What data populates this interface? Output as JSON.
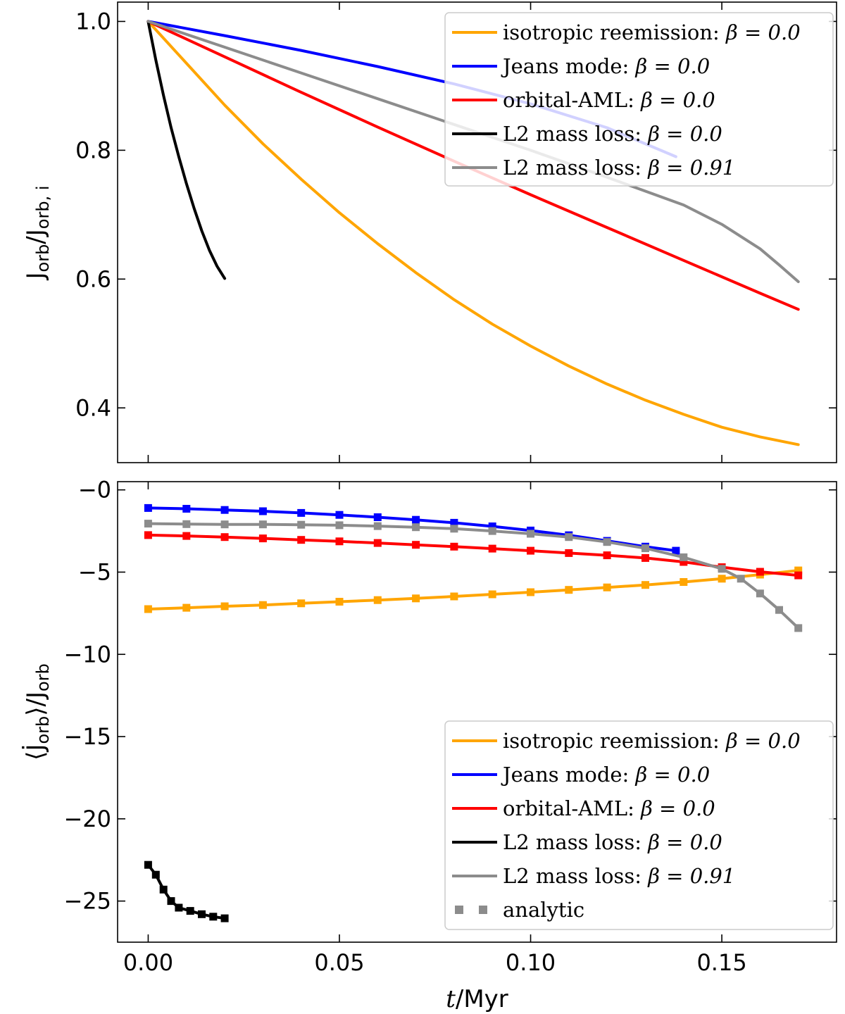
{
  "chart_data": [
    {
      "type": "line",
      "panel": "top",
      "ylabel_main": "J",
      "ylabel_sub": "orb",
      "ylabel_main2": "J",
      "ylabel_sub2": "orb, i",
      "xlim": [
        -0.008,
        0.18
      ],
      "ylim": [
        0.315,
        1.03
      ],
      "yticks": [
        0.4,
        0.6,
        0.8,
        1.0
      ],
      "ytick_labels": [
        "0.4",
        "0.6",
        "0.8",
        "1.0"
      ],
      "xticks": [
        0.0,
        0.05,
        0.1,
        0.15
      ],
      "legend_position": "top-right",
      "series": [
        {
          "name": "isotropic reemission: β = 0.0",
          "color": "#FFA500",
          "x": [
            0,
            0.01,
            0.02,
            0.03,
            0.04,
            0.05,
            0.06,
            0.07,
            0.08,
            0.09,
            0.1,
            0.11,
            0.12,
            0.13,
            0.14,
            0.15,
            0.16,
            0.17
          ],
          "y": [
            1.0,
            0.935,
            0.87,
            0.81,
            0.755,
            0.703,
            0.655,
            0.61,
            0.568,
            0.53,
            0.496,
            0.465,
            0.437,
            0.412,
            0.39,
            0.37,
            0.355,
            0.343
          ]
        },
        {
          "name": "Jeans mode: β = 0.0",
          "color": "#0000FF",
          "x": [
            0,
            0.02,
            0.04,
            0.06,
            0.08,
            0.1,
            0.12,
            0.138
          ],
          "y": [
            1.0,
            0.978,
            0.955,
            0.93,
            0.903,
            0.872,
            0.835,
            0.79
          ]
        },
        {
          "name": "orbital-AML: β = 0.0",
          "color": "#FF0000",
          "x": [
            0,
            0.02,
            0.04,
            0.06,
            0.08,
            0.1,
            0.12,
            0.14,
            0.16,
            0.17
          ],
          "y": [
            1.0,
            0.945,
            0.89,
            0.836,
            0.783,
            0.731,
            0.68,
            0.629,
            0.578,
            0.553
          ]
        },
        {
          "name": "L2 mass loss: β = 0.0",
          "color": "#000000",
          "x": [
            0,
            0.002,
            0.004,
            0.006,
            0.008,
            0.01,
            0.012,
            0.014,
            0.016,
            0.018,
            0.02
          ],
          "y": [
            1.0,
            0.94,
            0.885,
            0.835,
            0.79,
            0.748,
            0.71,
            0.675,
            0.645,
            0.62,
            0.601
          ]
        },
        {
          "name": "L2 mass loss: β = 0.91",
          "color": "#8C8C8C",
          "x": [
            0,
            0.02,
            0.04,
            0.06,
            0.08,
            0.1,
            0.12,
            0.14,
            0.15,
            0.16,
            0.165,
            0.17
          ],
          "y": [
            1.0,
            0.96,
            0.92,
            0.88,
            0.84,
            0.8,
            0.758,
            0.715,
            0.685,
            0.647,
            0.622,
            0.596
          ]
        }
      ]
    },
    {
      "type": "line",
      "panel": "bottom",
      "xlabel_var": "t",
      "xlabel_unit": "/Myr",
      "ylabel_main": "J",
      "ylabel_sub": "orb",
      "ylabel_main2": "J",
      "ylabel_sub2": "orb",
      "xlim": [
        -0.008,
        0.18
      ],
      "ylim": [
        -27.5,
        0.5
      ],
      "yticks": [
        -25,
        -20,
        -15,
        -10,
        -5,
        0
      ],
      "ytick_labels": [
        "−25",
        "−20",
        "−15",
        "−10",
        "−5",
        "−0"
      ],
      "xticks": [
        0.0,
        0.05,
        0.1,
        0.15
      ],
      "xtick_labels": [
        "0.00",
        "0.05",
        "0.10",
        "0.15"
      ],
      "legend_position": "bottom-right",
      "series": [
        {
          "name": "isotropic reemission: β = 0.0",
          "color": "#FFA500",
          "x": [
            0,
            0.01,
            0.02,
            0.03,
            0.04,
            0.05,
            0.06,
            0.07,
            0.08,
            0.09,
            0.1,
            0.11,
            0.12,
            0.13,
            0.14,
            0.15,
            0.16,
            0.17
          ],
          "y": [
            -7.25,
            -7.17,
            -7.08,
            -7.0,
            -6.9,
            -6.8,
            -6.7,
            -6.6,
            -6.48,
            -6.35,
            -6.22,
            -6.08,
            -5.93,
            -5.78,
            -5.6,
            -5.4,
            -5.15,
            -4.9
          ]
        },
        {
          "name": "Jeans mode: β = 0.0",
          "color": "#0000FF",
          "x": [
            0,
            0.01,
            0.02,
            0.03,
            0.04,
            0.05,
            0.06,
            0.07,
            0.08,
            0.09,
            0.1,
            0.11,
            0.12,
            0.13,
            0.138
          ],
          "y": [
            -1.1,
            -1.15,
            -1.22,
            -1.3,
            -1.4,
            -1.52,
            -1.66,
            -1.82,
            -2.0,
            -2.22,
            -2.47,
            -2.76,
            -3.1,
            -3.45,
            -3.7
          ]
        },
        {
          "name": "orbital-AML: β = 0.0",
          "color": "#FF0000",
          "x": [
            0,
            0.01,
            0.02,
            0.03,
            0.04,
            0.05,
            0.06,
            0.07,
            0.08,
            0.09,
            0.1,
            0.11,
            0.12,
            0.13,
            0.14,
            0.15,
            0.16,
            0.17
          ],
          "y": [
            -2.75,
            -2.8,
            -2.87,
            -2.95,
            -3.04,
            -3.13,
            -3.23,
            -3.34,
            -3.45,
            -3.57,
            -3.7,
            -3.84,
            -3.98,
            -4.14,
            -4.38,
            -4.7,
            -4.98,
            -5.2
          ]
        },
        {
          "name": "L2 mass loss: β = 0.0",
          "color": "#000000",
          "x": [
            0,
            0.002,
            0.004,
            0.006,
            0.008,
            0.011,
            0.014,
            0.017,
            0.02
          ],
          "y": [
            -22.8,
            -23.4,
            -24.3,
            -25.0,
            -25.4,
            -25.6,
            -25.8,
            -25.95,
            -26.05
          ]
        },
        {
          "name": "L2 mass loss: β = 0.91",
          "color": "#8C8C8C",
          "x": [
            0,
            0.01,
            0.02,
            0.03,
            0.04,
            0.05,
            0.06,
            0.07,
            0.08,
            0.09,
            0.1,
            0.11,
            0.12,
            0.13,
            0.14,
            0.15,
            0.155,
            0.16,
            0.165,
            0.17
          ],
          "y": [
            -2.05,
            -2.08,
            -2.1,
            -2.1,
            -2.12,
            -2.15,
            -2.2,
            -2.27,
            -2.36,
            -2.5,
            -2.67,
            -2.87,
            -3.17,
            -3.55,
            -4.1,
            -4.8,
            -5.4,
            -6.3,
            -7.3,
            -8.4
          ]
        }
      ],
      "analytic_marker_color": "#8C8C8C"
    }
  ],
  "legend": {
    "items": [
      {
        "label": "isotropic reemission: ",
        "beta": "β = 0.0",
        "color": "#FFA500"
      },
      {
        "label": "Jeans mode: ",
        "beta": "β = 0.0",
        "color": "#0000FF"
      },
      {
        "label": "orbital-AML: ",
        "beta": "β = 0.0",
        "color": "#FF0000"
      },
      {
        "label": "L2 mass loss: ",
        "beta": "β = 0.0",
        "color": "#000000"
      },
      {
        "label": "L2 mass loss: ",
        "beta": "β = 0.91",
        "color": "#8C8C8C"
      }
    ],
    "analytic_label": "analytic"
  }
}
